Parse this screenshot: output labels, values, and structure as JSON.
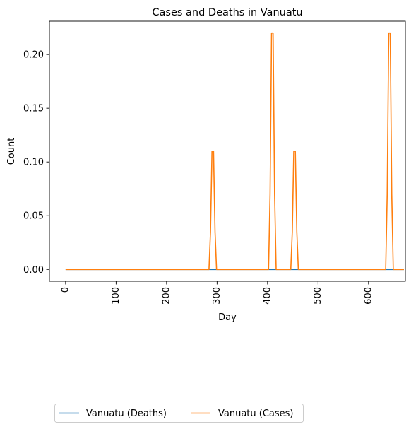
{
  "chart_data": {
    "type": "line",
    "title": "Cases and Deaths in Vanuatu",
    "xlabel": "Day",
    "ylabel": "Count",
    "xlim": [
      -32,
      673
    ],
    "ylim": [
      -0.011,
      0.231
    ],
    "xticks": [
      0,
      100,
      200,
      300,
      400,
      500,
      600,
      700
    ],
    "xtick_labels": [
      "0",
      "100",
      "200",
      "300",
      "400",
      "500",
      "600",
      "700"
    ],
    "yticks": [
      0.0,
      0.05,
      0.1,
      0.15,
      0.2
    ],
    "ytick_labels": [
      "0.00",
      "0.05",
      "0.10",
      "0.15",
      "0.20"
    ],
    "grid": false,
    "legend_position": "bottom-left, below plot",
    "series": [
      {
        "name": "Vanuatu (Deaths)",
        "color": "#1f77b4",
        "x": [
          0,
          670
        ],
        "y": [
          0,
          0
        ]
      },
      {
        "name": "Vanuatu (Cases)",
        "color": "#ff7f0e",
        "x": [
          0,
          284,
          287,
          290,
          293,
          296,
          299,
          302,
          402,
          405,
          408,
          411,
          414,
          417,
          420,
          446,
          449,
          452,
          455,
          458,
          461,
          464,
          634,
          637,
          640,
          643,
          646,
          649,
          652,
          670
        ],
        "y": [
          0,
          0,
          0.035,
          0.11,
          0.11,
          0.035,
          0,
          0,
          0,
          0.07,
          0.22,
          0.22,
          0.07,
          0,
          0,
          0,
          0.035,
          0.11,
          0.11,
          0.035,
          0,
          0,
          0,
          0.07,
          0.22,
          0.22,
          0.07,
          0,
          0,
          0
        ]
      }
    ]
  }
}
